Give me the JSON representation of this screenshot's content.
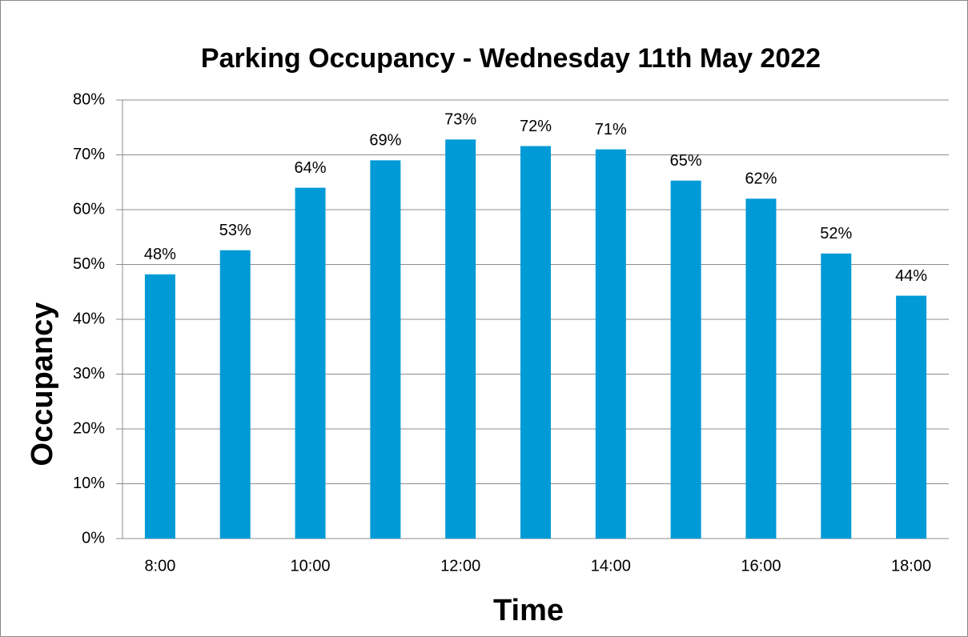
{
  "chart_data": {
    "type": "bar",
    "title": "Parking Occupancy - Wednesday 11th May 2022",
    "x_label": "Time",
    "y_label": "Occupancy",
    "categories": [
      "8:00",
      null,
      "10:00",
      null,
      "12:00",
      null,
      "14:00",
      null,
      "16:00",
      null,
      "18:00"
    ],
    "values": [
      48.2,
      52.6,
      64,
      69,
      72.8,
      71.6,
      71,
      65.3,
      62,
      52,
      44.3
    ],
    "value_labels": [
      "48%",
      "53%",
      "64%",
      "69%",
      "73%",
      "72%",
      "71%",
      "65%",
      "62%",
      "52%",
      "44%"
    ],
    "color": "#009ad6",
    "ylim": [
      0,
      80
    ],
    "yticks": [
      {
        "value": 0,
        "label": "0%"
      },
      {
        "value": 10,
        "label": "10%"
      },
      {
        "value": 20,
        "label": "20%"
      },
      {
        "value": 30,
        "label": "30%"
      },
      {
        "value": 40,
        "label": "40%"
      },
      {
        "value": 50,
        "label": "50%"
      },
      {
        "value": 60,
        "label": "60%"
      },
      {
        "value": 70,
        "label": "70%"
      },
      {
        "value": 80,
        "label": "80%"
      }
    ],
    "grid": true
  }
}
